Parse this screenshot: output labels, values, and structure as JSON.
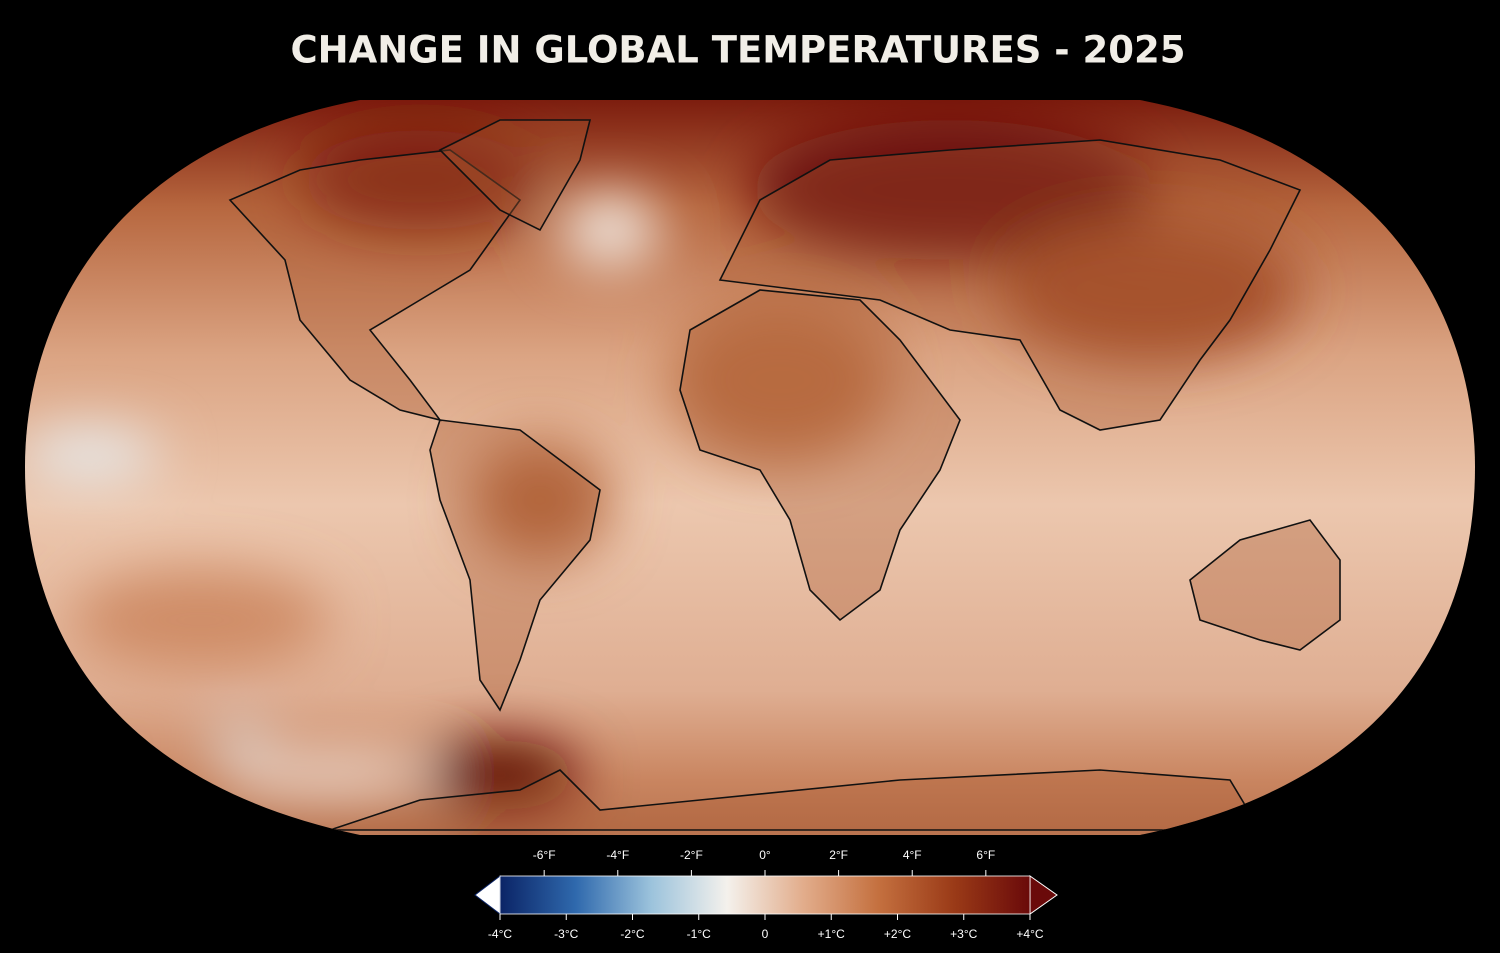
{
  "title": "CHANGE IN GLOBAL TEMPERATURES - 2025",
  "colorbar": {
    "lim": [
      -4,
      4
    ],
    "colors": [
      "#0b2466",
      "#2f69ad",
      "#9cc3dc",
      "#f4f1ec",
      "#e2ad8c",
      "#c4703f",
      "#9a3a17",
      "#6a0a0a"
    ],
    "celsius_ticks": [
      {
        "value": -4,
        "label": "-4°C"
      },
      {
        "value": -3,
        "label": "-3°C"
      },
      {
        "value": -2,
        "label": "-2°C"
      },
      {
        "value": -1,
        "label": "-1°C"
      },
      0,
      {
        "value": 1,
        "label": "+1°C"
      },
      {
        "value": 2,
        "label": "+2°C"
      },
      {
        "value": 3,
        "label": "+3°C"
      },
      {
        "value": 4,
        "label": "+4°C"
      }
    ],
    "fahrenheit_lim": [
      -7.2,
      7.2
    ],
    "fahrenheit_ticks": [
      {
        "value": -6,
        "label": "-6°F"
      },
      {
        "value": -4,
        "label": "-4°F"
      },
      {
        "value": -2,
        "label": "-2°F"
      },
      {
        "value": 0,
        "label": "0°"
      },
      {
        "value": 2,
        "label": "2°F"
      },
      {
        "value": 4,
        "label": "4°F"
      },
      {
        "value": 6,
        "label": "6°F"
      }
    ]
  }
}
